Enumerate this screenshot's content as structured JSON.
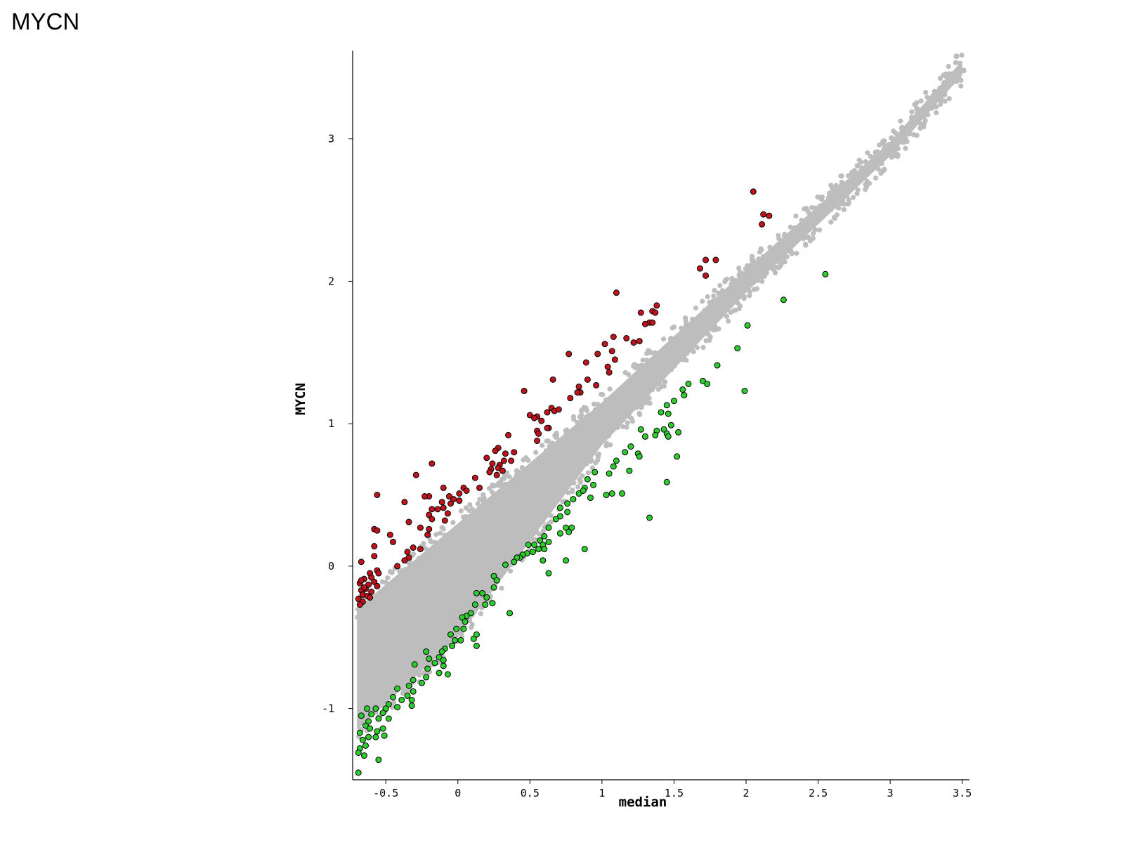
{
  "page_title": "MYCN",
  "chart_data": {
    "type": "scatter",
    "xlabel": "median",
    "ylabel": "MYCN",
    "xlim": [
      -0.73,
      3.55
    ],
    "ylim": [
      -1.5,
      3.62
    ],
    "xticks": [
      -0.5,
      0,
      0.5,
      1,
      1.5,
      2,
      2.5,
      3,
      3.5
    ],
    "xtick_labels": [
      "-0.5",
      "0",
      "0.5",
      "1",
      "1.5",
      "2",
      "2.5",
      "3",
      "3.5"
    ],
    "yticks": [
      -1,
      0,
      1,
      2,
      3
    ],
    "ytick_labels": [
      "-1",
      "0",
      "1",
      "2",
      "3"
    ],
    "grid": false,
    "colors": {
      "background_points": "#bdbdbd",
      "up_points": "#c0141c",
      "down_points": "#2ecc2e",
      "outline": "#000000"
    },
    "series": [
      {
        "role": "background",
        "description_of_distribution": "dense band around y = x",
        "band": {
          "x_range": [
            -0.7,
            3.5
          ],
          "upper_y": [
            [
              -0.7,
              -0.3
            ],
            [
              0,
              0.3
            ],
            [
              1,
              1.15
            ],
            [
              2,
              2.08
            ],
            [
              3,
              2.98
            ],
            [
              3.5,
              3.55
            ]
          ],
          "lower_y": [
            [
              -0.7,
              -1.15
            ],
            [
              0,
              -0.5
            ],
            [
              1,
              0.85
            ],
            [
              2,
              1.92
            ],
            [
              3,
              2.88
            ],
            [
              3.5,
              3.45
            ]
          ]
        },
        "extreme_points": [
          [
            3.46,
            3.58
          ],
          [
            3.51,
            3.48
          ],
          [
            3.3,
            3.3
          ],
          [
            3.25,
            3.22
          ],
          [
            3.15,
            3.15
          ],
          [
            2.95,
            2.97
          ],
          [
            2.9,
            2.88
          ],
          [
            2.8,
            2.75
          ]
        ]
      },
      {
        "role": "up",
        "points": [
          [
            2.05,
            2.63
          ],
          [
            2.12,
            2.47
          ],
          [
            2.16,
            2.46
          ],
          [
            2.11,
            2.4
          ],
          [
            1.72,
            2.15
          ],
          [
            1.79,
            2.15
          ],
          [
            1.68,
            2.09
          ],
          [
            1.72,
            2.04
          ],
          [
            1.1,
            1.92
          ],
          [
            1.38,
            1.83
          ],
          [
            1.35,
            1.79
          ],
          [
            1.37,
            1.78
          ],
          [
            1.27,
            1.78
          ],
          [
            1.33,
            1.71
          ],
          [
            1.35,
            1.71
          ],
          [
            1.3,
            1.7
          ],
          [
            1.08,
            1.61
          ],
          [
            1.17,
            1.6
          ],
          [
            1.22,
            1.57
          ],
          [
            1.26,
            1.58
          ],
          [
            1.02,
            1.56
          ],
          [
            1.07,
            1.51
          ],
          [
            0.97,
            1.49
          ],
          [
            0.77,
            1.49
          ],
          [
            1.09,
            1.45
          ],
          [
            0.89,
            1.43
          ],
          [
            1.04,
            1.4
          ],
          [
            1.05,
            1.36
          ],
          [
            0.9,
            1.31
          ],
          [
            0.66,
            1.31
          ],
          [
            0.96,
            1.27
          ],
          [
            0.84,
            1.26
          ],
          [
            0.85,
            1.22
          ],
          [
            0.83,
            1.22
          ],
          [
            0.78,
            1.18
          ],
          [
            0.46,
            1.23
          ],
          [
            0.65,
            1.11
          ],
          [
            0.67,
            1.09
          ],
          [
            0.7,
            1.1
          ],
          [
            0.62,
            1.08
          ],
          [
            0.5,
            1.06
          ],
          [
            0.55,
            1.05
          ],
          [
            0.53,
            1.04
          ],
          [
            0.58,
            1.02
          ],
          [
            0.63,
            0.97
          ],
          [
            0.62,
            0.97
          ],
          [
            0.55,
            0.95
          ],
          [
            0.56,
            0.93
          ],
          [
            0.35,
            0.92
          ],
          [
            0.55,
            0.88
          ],
          [
            0.28,
            0.83
          ],
          [
            0.26,
            0.81
          ],
          [
            0.39,
            0.8
          ],
          [
            0.33,
            0.79
          ],
          [
            0.32,
            0.74
          ],
          [
            0.2,
            0.76
          ],
          [
            0.29,
            0.71
          ],
          [
            0.37,
            0.74
          ],
          [
            0.24,
            0.72
          ],
          [
            0.23,
            0.68
          ],
          [
            0.28,
            0.69
          ],
          [
            0.27,
            0.64
          ],
          [
            0.31,
            0.67
          ],
          [
            0.22,
            0.66
          ],
          [
            -0.29,
            0.64
          ],
          [
            -0.18,
            0.72
          ],
          [
            0.12,
            0.62
          ],
          [
            0.04,
            0.55
          ],
          [
            0.15,
            0.55
          ],
          [
            0.06,
            0.53
          ],
          [
            0.01,
            0.51
          ],
          [
            -0.1,
            0.55
          ],
          [
            -0.06,
            0.49
          ],
          [
            -0.03,
            0.47
          ],
          [
            -0.05,
            0.44
          ],
          [
            -0.11,
            0.45
          ],
          [
            -0.2,
            0.49
          ],
          [
            -0.23,
            0.49
          ],
          [
            0.01,
            0.46
          ],
          [
            -0.37,
            0.45
          ],
          [
            -0.18,
            0.4
          ],
          [
            -0.1,
            0.41
          ],
          [
            -0.14,
            0.4
          ],
          [
            -0.07,
            0.37
          ],
          [
            -0.56,
            0.5
          ],
          [
            -0.2,
            0.36
          ],
          [
            -0.09,
            0.32
          ],
          [
            -0.18,
            0.33
          ],
          [
            -0.34,
            0.31
          ],
          [
            -0.2,
            0.26
          ],
          [
            -0.26,
            0.27
          ],
          [
            -0.21,
            0.22
          ],
          [
            -0.58,
            0.26
          ],
          [
            -0.56,
            0.25
          ],
          [
            -0.47,
            0.22
          ],
          [
            -0.45,
            0.17
          ],
          [
            -0.58,
            0.14
          ],
          [
            -0.31,
            0.13
          ],
          [
            -0.35,
            0.1
          ],
          [
            -0.26,
            0.12
          ],
          [
            -0.58,
            0.07
          ],
          [
            -0.34,
            0.06
          ],
          [
            -0.37,
            0.04
          ],
          [
            -0.67,
            0.03
          ],
          [
            -0.42,
            0.0
          ],
          [
            -0.56,
            -0.03
          ],
          [
            -0.61,
            -0.05
          ],
          [
            -0.55,
            -0.05
          ],
          [
            -0.6,
            -0.08
          ],
          [
            -0.65,
            -0.09
          ],
          [
            -0.58,
            -0.11
          ],
          [
            -0.68,
            -0.12
          ],
          [
            -0.62,
            -0.13
          ],
          [
            -0.56,
            -0.14
          ],
          [
            -0.64,
            -0.16
          ],
          [
            -0.67,
            -0.17
          ],
          [
            -0.6,
            -0.18
          ],
          [
            -0.66,
            -0.2
          ],
          [
            -0.63,
            -0.21
          ],
          [
            -0.69,
            -0.23
          ],
          [
            -0.66,
            -0.25
          ],
          [
            -0.68,
            -0.27
          ],
          [
            -0.65,
            -0.15
          ],
          [
            -0.61,
            -0.22
          ],
          [
            -0.67,
            -0.1
          ]
        ]
      },
      {
        "role": "down",
        "points": [
          [
            2.55,
            2.05
          ],
          [
            2.26,
            1.87
          ],
          [
            2.01,
            1.69
          ],
          [
            1.94,
            1.53
          ],
          [
            1.8,
            1.41
          ],
          [
            1.99,
            1.23
          ],
          [
            1.7,
            1.3
          ],
          [
            1.73,
            1.28
          ],
          [
            1.6,
            1.28
          ],
          [
            1.56,
            1.24
          ],
          [
            1.57,
            1.2
          ],
          [
            1.5,
            1.16
          ],
          [
            1.45,
            1.13
          ],
          [
            1.46,
            1.07
          ],
          [
            1.41,
            1.08
          ],
          [
            1.48,
            0.99
          ],
          [
            1.43,
            0.96
          ],
          [
            1.38,
            0.95
          ],
          [
            1.27,
            0.96
          ],
          [
            1.3,
            0.91
          ],
          [
            1.37,
            0.92
          ],
          [
            1.45,
            0.93
          ],
          [
            1.53,
            0.94
          ],
          [
            1.46,
            0.91
          ],
          [
            1.2,
            0.84
          ],
          [
            1.25,
            0.79
          ],
          [
            1.16,
            0.8
          ],
          [
            1.26,
            0.77
          ],
          [
            1.52,
            0.77
          ],
          [
            1.1,
            0.74
          ],
          [
            1.08,
            0.7
          ],
          [
            1.19,
            0.67
          ],
          [
            1.05,
            0.65
          ],
          [
            0.95,
            0.66
          ],
          [
            1.45,
            0.59
          ],
          [
            0.9,
            0.61
          ],
          [
            0.94,
            0.57
          ],
          [
            0.88,
            0.55
          ],
          [
            0.84,
            0.51
          ],
          [
            0.87,
            0.53
          ],
          [
            1.03,
            0.5
          ],
          [
            1.07,
            0.51
          ],
          [
            0.92,
            0.48
          ],
          [
            1.14,
            0.51
          ],
          [
            1.33,
            0.34
          ],
          [
            0.8,
            0.47
          ],
          [
            0.76,
            0.44
          ],
          [
            0.71,
            0.41
          ],
          [
            0.76,
            0.38
          ],
          [
            0.71,
            0.35
          ],
          [
            0.68,
            0.33
          ],
          [
            0.63,
            0.27
          ],
          [
            0.75,
            0.27
          ],
          [
            0.79,
            0.27
          ],
          [
            0.77,
            0.24
          ],
          [
            0.71,
            0.23
          ],
          [
            0.6,
            0.21
          ],
          [
            0.57,
            0.18
          ],
          [
            0.63,
            0.17
          ],
          [
            0.59,
            0.15
          ],
          [
            0.53,
            0.15
          ],
          [
            0.49,
            0.15
          ],
          [
            0.56,
            0.12
          ],
          [
            0.6,
            0.12
          ],
          [
            0.88,
            0.12
          ],
          [
            0.52,
            0.1
          ],
          [
            0.48,
            0.09
          ],
          [
            0.45,
            0.08
          ],
          [
            0.43,
            0.06
          ],
          [
            0.59,
            0.04
          ],
          [
            0.75,
            0.04
          ],
          [
            0.41,
            0.06
          ],
          [
            0.39,
            0.03
          ],
          [
            0.33,
            0.01
          ],
          [
            0.63,
            -0.05
          ],
          [
            0.25,
            -0.07
          ],
          [
            0.27,
            -0.1
          ],
          [
            0.25,
            -0.15
          ],
          [
            0.13,
            -0.19
          ],
          [
            0.17,
            -0.19
          ],
          [
            0.2,
            -0.22
          ],
          [
            0.24,
            -0.26
          ],
          [
            0.19,
            -0.27
          ],
          [
            0.12,
            -0.27
          ],
          [
            0.36,
            -0.33
          ],
          [
            0.09,
            -0.33
          ],
          [
            0.06,
            -0.35
          ],
          [
            0.03,
            -0.36
          ],
          [
            0.05,
            -0.39
          ],
          [
            -0.01,
            -0.44
          ],
          [
            0.04,
            -0.44
          ],
          [
            -0.05,
            -0.48
          ],
          [
            0.13,
            -0.48
          ],
          [
            0.11,
            -0.51
          ],
          [
            -0.02,
            -0.52
          ],
          [
            0.02,
            -0.52
          ],
          [
            0.13,
            -0.56
          ],
          [
            -0.04,
            -0.56
          ],
          [
            -0.09,
            -0.58
          ],
          [
            -0.11,
            -0.6
          ],
          [
            -0.22,
            -0.6
          ],
          [
            -0.2,
            -0.65
          ],
          [
            -0.13,
            -0.64
          ],
          [
            -0.1,
            -0.66
          ],
          [
            -0.16,
            -0.68
          ],
          [
            -0.1,
            -0.7
          ],
          [
            -0.3,
            -0.69
          ],
          [
            -0.21,
            -0.72
          ],
          [
            -0.13,
            -0.75
          ],
          [
            -0.07,
            -0.76
          ],
          [
            -0.22,
            -0.78
          ],
          [
            -0.25,
            -0.82
          ],
          [
            -0.31,
            -0.8
          ],
          [
            -0.34,
            -0.84
          ],
          [
            -0.31,
            -0.88
          ],
          [
            -0.35,
            -0.91
          ],
          [
            -0.42,
            -0.86
          ],
          [
            -0.45,
            -0.92
          ],
          [
            -0.39,
            -0.94
          ],
          [
            -0.42,
            -0.99
          ],
          [
            -0.32,
            -0.94
          ],
          [
            -0.32,
            -0.98
          ],
          [
            -0.48,
            -0.97
          ],
          [
            -0.5,
            -1.0
          ],
          [
            -0.57,
            -1.0
          ],
          [
            -0.52,
            -1.03
          ],
          [
            -0.6,
            -1.04
          ],
          [
            -0.55,
            -1.07
          ],
          [
            -0.62,
            -1.09
          ],
          [
            -0.64,
            -1.12
          ],
          [
            -0.48,
            -1.07
          ],
          [
            -0.52,
            -1.14
          ],
          [
            -0.56,
            -1.16
          ],
          [
            -0.51,
            -1.19
          ],
          [
            -0.57,
            -1.2
          ],
          [
            -0.62,
            -1.2
          ],
          [
            -0.68,
            -1.17
          ],
          [
            -0.66,
            -1.22
          ],
          [
            -0.64,
            -1.26
          ],
          [
            -0.68,
            -1.28
          ],
          [
            -0.69,
            -1.31
          ],
          [
            -0.65,
            -1.33
          ],
          [
            -0.55,
            -1.36
          ],
          [
            -0.69,
            -1.45
          ],
          [
            -0.61,
            -1.14
          ],
          [
            -0.67,
            -1.05
          ],
          [
            -0.63,
            -1.0
          ]
        ]
      }
    ]
  }
}
